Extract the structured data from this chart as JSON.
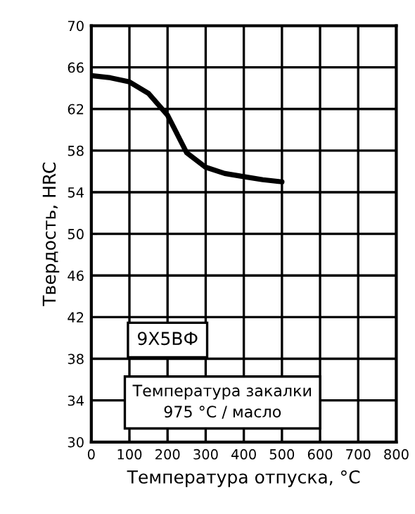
{
  "chart_data": {
    "type": "line",
    "x": [
      0,
      50,
      100,
      150,
      200,
      250,
      300,
      350,
      400,
      450,
      500
    ],
    "series": [
      {
        "color": "#000000",
        "values": [
          65.2,
          65.0,
          64.6,
          63.5,
          61.4,
          57.8,
          56.4,
          55.8,
          55.5,
          55.2,
          55.0
        ]
      }
    ],
    "xlabel": "Температура отпуска, °C",
    "ylabel": "Твердость, HRC",
    "xlim": [
      0,
      800
    ],
    "xticks": [
      0,
      100,
      200,
      300,
      400,
      500,
      600,
      700,
      800
    ],
    "ylim": [
      30,
      70
    ],
    "yticks": [
      30,
      34,
      38,
      42,
      46,
      50,
      54,
      58,
      62,
      66,
      70
    ],
    "grid": true,
    "marker": "none",
    "line_style": "solid",
    "annotations": [
      "9Х5ВФ",
      "Температура закалки\n975 °C / масло"
    ]
  }
}
